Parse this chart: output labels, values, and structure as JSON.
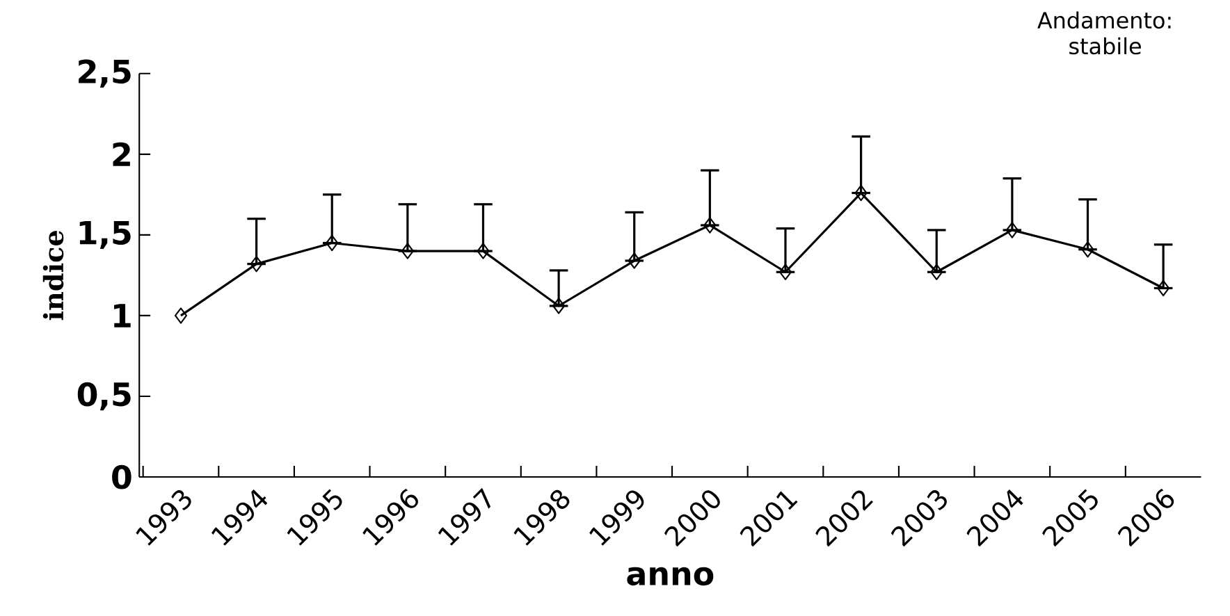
{
  "chart_data": {
    "type": "line",
    "xlabel": "anno",
    "ylabel": "indice",
    "annotations": [
      "Andamento: stabile"
    ],
    "categories": [
      "1993",
      "1994",
      "1995",
      "1996",
      "1997",
      "1998",
      "1999",
      "2000",
      "2001",
      "2002",
      "2003",
      "2004",
      "2005",
      "2006"
    ],
    "values": [
      1.0,
      1.32,
      1.45,
      1.4,
      1.4,
      1.06,
      1.34,
      1.56,
      1.27,
      1.76,
      1.27,
      1.53,
      1.41,
      1.17
    ],
    "errors": [
      null,
      [
        1.32,
        1.6
      ],
      [
        1.45,
        1.75
      ],
      [
        1.4,
        1.69
      ],
      [
        1.4,
        1.69
      ],
      [
        1.06,
        1.28
      ],
      [
        1.34,
        1.64
      ],
      [
        1.56,
        1.9
      ],
      [
        1.27,
        1.54
      ],
      [
        1.76,
        2.11
      ],
      [
        1.27,
        1.53
      ],
      [
        1.53,
        1.85
      ],
      [
        1.41,
        1.72
      ],
      [
        1.17,
        1.44
      ]
    ],
    "color": "#000000",
    "marker": "diamond",
    "line_style": "solid",
    "grid": false,
    "ylim": [
      0,
      2.5
    ],
    "yticks": [
      0,
      {
        "value": 0.5,
        "label": "0,5"
      },
      1,
      {
        "value": 1.5,
        "label": "1,5"
      },
      2,
      {
        "value": 2.5,
        "label": "2,5"
      }
    ]
  }
}
